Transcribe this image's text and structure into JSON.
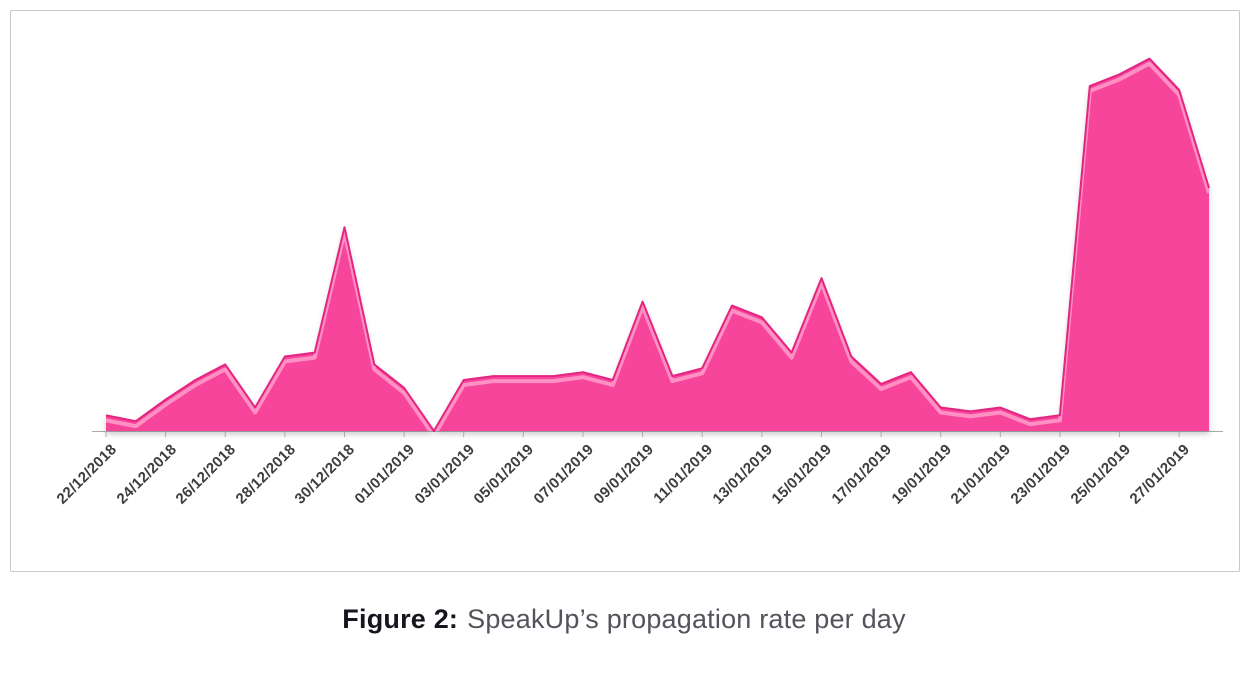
{
  "figure": {
    "caption_prefix": "Figure 2:",
    "caption_text": "SpeakUp’s propagation rate per day"
  },
  "chart_data": {
    "type": "area",
    "title": "SpeakUp’s propagation rate per day",
    "xlabel": "",
    "ylabel": "",
    "grid": false,
    "legend": false,
    "ylim": [
      0,
      100
    ],
    "x": [
      "22/12/2018",
      "23/12/2018",
      "24/12/2018",
      "25/12/2018",
      "26/12/2018",
      "27/12/2018",
      "28/12/2018",
      "29/12/2018",
      "30/12/2018",
      "31/12/2018",
      "01/01/2019",
      "02/01/2019",
      "03/01/2019",
      "04/01/2019",
      "05/01/2019",
      "06/01/2019",
      "07/01/2019",
      "08/01/2019",
      "09/01/2019",
      "10/01/2019",
      "11/01/2019",
      "12/01/2019",
      "13/01/2019",
      "14/01/2019",
      "15/01/2019",
      "16/01/2019",
      "17/01/2019",
      "18/01/2019",
      "19/01/2019",
      "20/01/2019",
      "21/01/2019",
      "22/01/2019",
      "23/01/2019",
      "24/01/2019",
      "25/01/2019",
      "26/01/2019",
      "27/01/2019",
      "28/01/2019"
    ],
    "values": [
      4,
      2.5,
      8,
      13,
      17,
      6,
      19,
      20,
      52,
      17,
      11,
      0,
      13,
      14,
      14,
      14,
      15,
      13,
      33,
      14,
      16,
      32,
      29,
      20,
      39,
      19,
      12,
      15,
      6,
      5,
      6,
      3,
      4,
      88,
      91,
      95,
      87,
      62
    ],
    "tick_labels": [
      "22/12/2018",
      "24/12/2018",
      "26/12/2018",
      "28/12/2018",
      "30/12/2018",
      "01/01/2019",
      "03/01/2019",
      "05/01/2019",
      "07/01/2019",
      "09/01/2019",
      "11/01/2019",
      "13/01/2019",
      "15/01/2019",
      "17/01/2019",
      "19/01/2019",
      "21/01/2019",
      "23/01/2019",
      "25/01/2019",
      "27/01/2019"
    ],
    "tick_every": 2,
    "colors": {
      "fill": "#f6459a",
      "outline": "#e4247f",
      "highlight": "#ff9ecb",
      "axis": "#aaaaaa",
      "tick_text": "#3e3e3e"
    }
  }
}
